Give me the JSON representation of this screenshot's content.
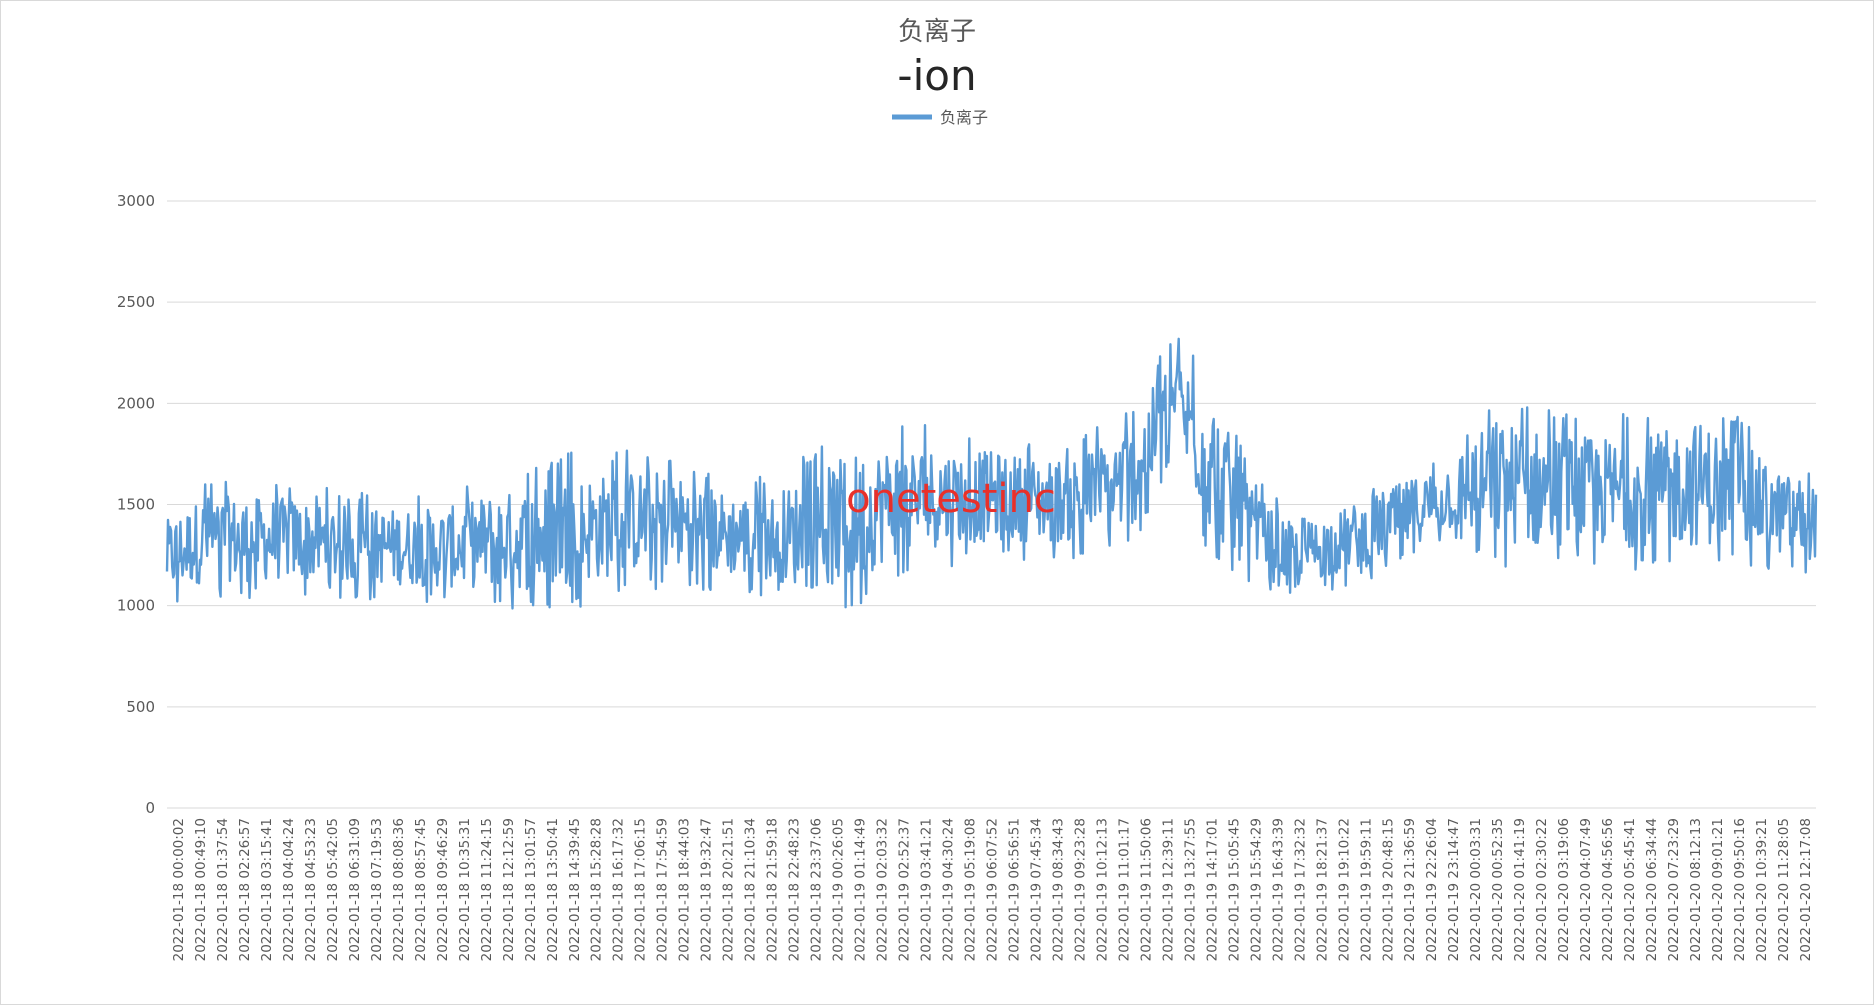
{
  "chart_data": {
    "type": "line",
    "title": "负离子",
    "subtitle": "-ion",
    "watermark": "onetestinc",
    "legend": {
      "position": "top",
      "entries": [
        "负离子"
      ]
    },
    "grid": true,
    "ylim": [
      0,
      3000
    ],
    "y_ticks": [
      "0",
      "500",
      "1000",
      "1500",
      "2000",
      "2500",
      "3000"
    ],
    "x_tick_labels": [
      "2022-01-18 00:00:02",
      "2022-01-18 00:49:10",
      "2022-01-18 01:37:54",
      "2022-01-18 02:26:57",
      "2022-01-18 03:15:41",
      "2022-01-18 04:04:24",
      "2022-01-18 04:53:23",
      "2022-01-18 05:42:05",
      "2022-01-18 06:31:09",
      "2022-01-18 07:19:53",
      "2022-01-18 08:08:36",
      "2022-01-18 08:57:45",
      "2022-01-18 09:46:29",
      "2022-01-18 10:35:31",
      "2022-01-18 11:24:15",
      "2022-01-18 12:12:59",
      "2022-01-18 13:01:57",
      "2022-01-18 13:50:41",
      "2022-01-18 14:39:45",
      "2022-01-18 15:28:28",
      "2022-01-18 16:17:32",
      "2022-01-18 17:06:15",
      "2022-01-18 17:54:59",
      "2022-01-18 18:44:03",
      "2022-01-18 19:32:47",
      "2022-01-18 20:21:51",
      "2022-01-18 21:10:34",
      "2022-01-18 21:59:18",
      "2022-01-18 22:48:23",
      "2022-01-18 23:37:06",
      "2022-01-19 00:26:05",
      "2022-01-19 01:14:49",
      "2022-01-19 02:03:32",
      "2022-01-19 02:52:37",
      "2022-01-19 03:41:21",
      "2022-01-19 04:30:24",
      "2022-01-19 05:19:08",
      "2022-01-19 06:07:52",
      "2022-01-19 06:56:51",
      "2022-01-19 07:45:34",
      "2022-01-19 08:34:43",
      "2022-01-19 09:23:28",
      "2022-01-19 10:12:13",
      "2022-01-19 11:01:17",
      "2022-01-19 11:50:06",
      "2022-01-19 12:39:11",
      "2022-01-19 13:27:55",
      "2022-01-19 14:17:01",
      "2022-01-19 15:05:45",
      "2022-01-19 15:54:29",
      "2022-01-19 16:43:39",
      "2022-01-19 17:32:32",
      "2022-01-19 18:21:37",
      "2022-01-19 19:10:22",
      "2022-01-19 19:59:11",
      "2022-01-19 20:48:15",
      "2022-01-19 21:36:59",
      "2022-01-19 22:26:04",
      "2022-01-19 23:14:47",
      "2022-01-20 00:03:31",
      "2022-01-20 00:52:35",
      "2022-01-20 01:41:19",
      "2022-01-20 02:30:22",
      "2022-01-20 03:19:06",
      "2022-01-20 04:07:49",
      "2022-01-20 04:56:56",
      "2022-01-20 05:45:41",
      "2022-01-20 06:34:44",
      "2022-01-20 07:23:29",
      "2022-01-20 08:12:13",
      "2022-01-20 09:01:21",
      "2022-01-20 09:50:16",
      "2022-01-20 10:39:21",
      "2022-01-20 11:28:05",
      "2022-01-20 12:17:08"
    ],
    "series": [
      {
        "name": "负离子",
        "color": "#5b9bd5",
        "approx_envelope": {
          "low": [
            980,
            1030,
            1030,
            1040,
            1030,
            1030,
            1020,
            1000,
            990,
            970,
            980,
            1030,
            1080,
            1080,
            1060,
            1040,
            960,
            960,
            1120,
            1180,
            1210,
            1230,
            1220,
            1230,
            1280,
            1700,
            1200,
            1070,
            1050,
            1080,
            1130,
            1240,
            1300,
            1200,
            1150,
            1200,
            1160,
            1190,
            1160,
            1200,
            1170,
            1140
          ],
          "high": [
            1500,
            1640,
            1620,
            1620,
            1590,
            1560,
            1560,
            1570,
            1650,
            1680,
            1760,
            1760,
            1780,
            1720,
            1640,
            1640,
            1760,
            1890,
            1910,
            1890,
            1870,
            1840,
            1810,
            1870,
            2000,
            2350,
            2200,
            1640,
            1460,
            1520,
            1620,
            1700,
            1810,
            2050,
            2000,
            1950,
            1950,
            1960,
            2050,
            1950,
            1750,
            1700
          ]
        }
      }
    ]
  }
}
